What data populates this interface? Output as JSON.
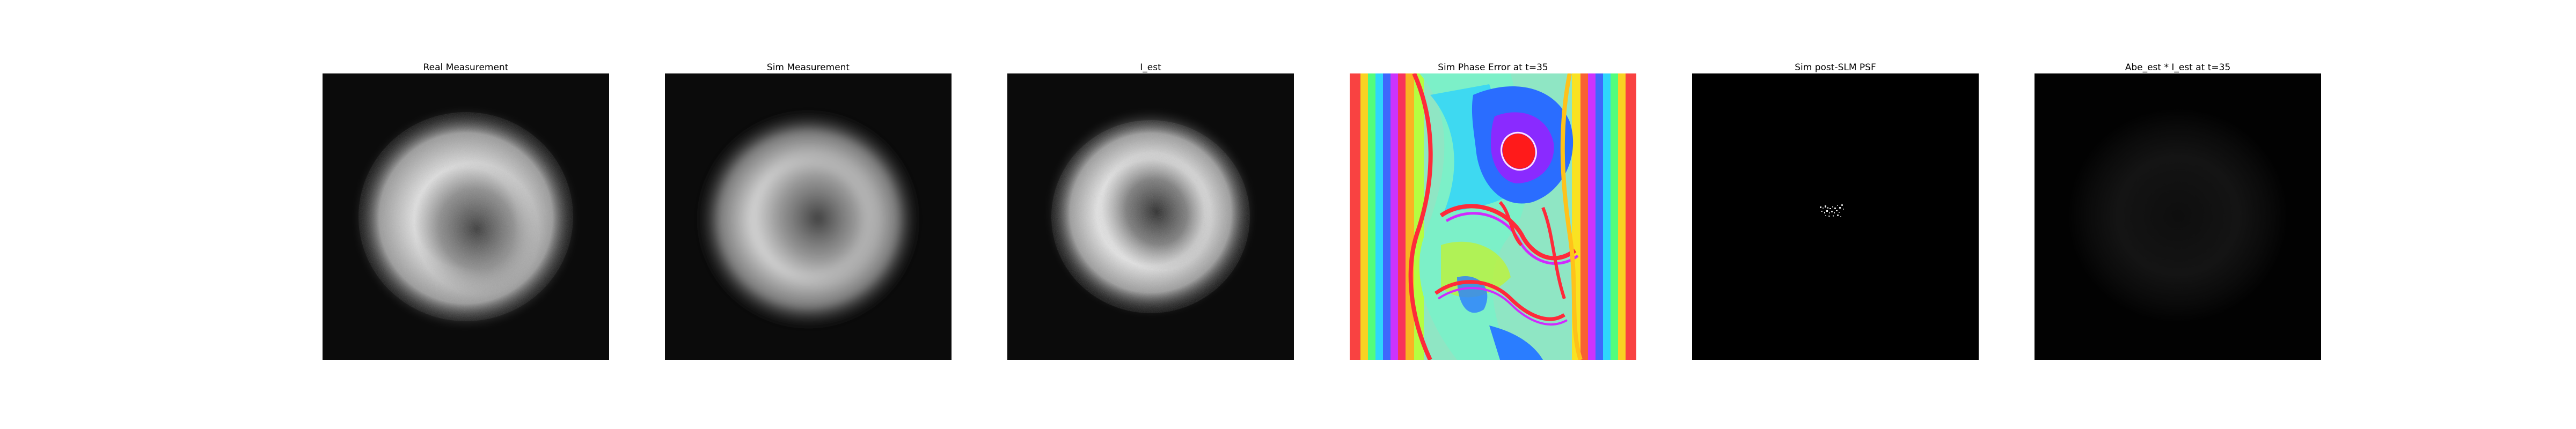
{
  "figure": {
    "panels": [
      {
        "title": "Real Measurement",
        "colormap": "gray"
      },
      {
        "title": "Sim Measurement",
        "colormap": "gray"
      },
      {
        "title": "I_est",
        "colormap": "gray"
      },
      {
        "title": "Sim Phase Error at t=35",
        "colormap": "hsv"
      },
      {
        "title": "Sim post-SLM PSF",
        "colormap": "gray"
      },
      {
        "title": "Abe_est * I_est at t=35",
        "colormap": "gray"
      }
    ]
  }
}
